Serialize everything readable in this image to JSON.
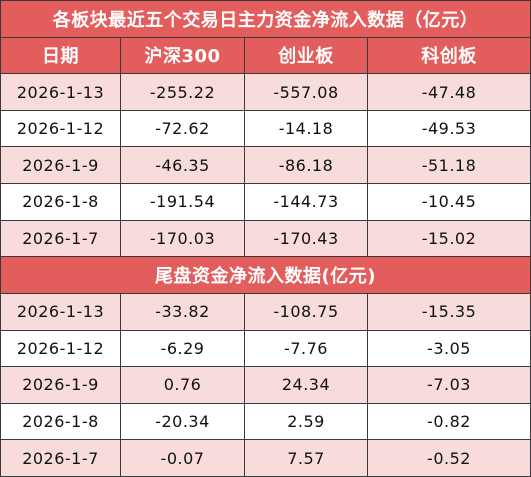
{
  "title": "各板块最近五个交易日主力资金净流入数据（亿元）",
  "header": [
    "日期",
    "沪深300",
    "创业板",
    "科创板"
  ],
  "main_rows": [
    [
      "2026-1-13",
      "-255.22",
      "-557.08",
      "-47.48"
    ],
    [
      "2026-1-12",
      "-72.62",
      "-14.18",
      "-49.53"
    ],
    [
      "2026-1-9",
      "-46.35",
      "-86.18",
      "-51.18"
    ],
    [
      "2026-1-8",
      "-191.54",
      "-144.73",
      "-10.45"
    ],
    [
      "2026-1-7",
      "-170.03",
      "-170.43",
      "-15.02"
    ]
  ],
  "tail_title": "尾盘资金净流入数据(亿元)",
  "tail_rows": [
    [
      "2026-1-13",
      "-33.82",
      "-108.75",
      "-15.35"
    ],
    [
      "2026-1-12",
      "-6.29",
      "-7.76",
      "-3.05"
    ],
    [
      "2026-1-9",
      "0.76",
      "24.34",
      "-7.03"
    ],
    [
      "2026-1-8",
      "-20.34",
      "2.59",
      "-0.82"
    ],
    [
      "2026-1-7",
      "-0.07",
      "7.57",
      "-0.52"
    ]
  ]
}
